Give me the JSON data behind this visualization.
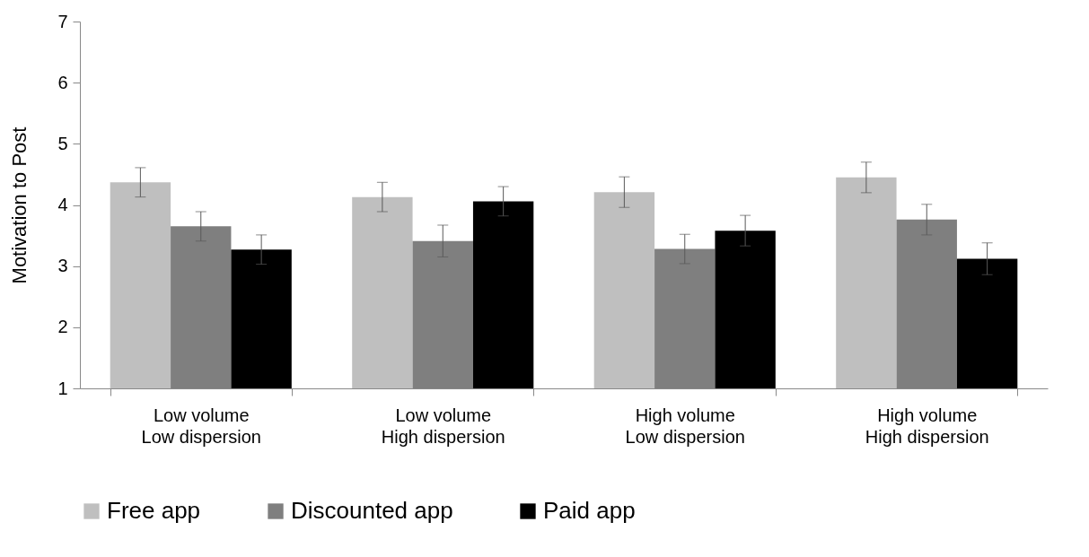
{
  "chart_data": {
    "type": "bar",
    "ylabel": "Motivation to Post",
    "categories": [
      "Low volume\nLow dispersion",
      "Low volume\nHigh dispersion",
      "High volume\nLow dispersion",
      "High volume\nHigh dispersion"
    ],
    "series": [
      {
        "name": "Free app",
        "color": "#bfbfbf",
        "values": [
          4.37,
          4.13,
          4.21,
          4.45
        ],
        "errors": [
          0.24,
          0.24,
          0.25,
          0.25
        ]
      },
      {
        "name": "Discounted app",
        "color": "#7f7f7f",
        "values": [
          3.65,
          3.41,
          3.28,
          3.76
        ],
        "errors": [
          0.24,
          0.26,
          0.24,
          0.25
        ]
      },
      {
        "name": "Paid app",
        "color": "#000000",
        "values": [
          3.27,
          4.06,
          3.58,
          3.12
        ],
        "errors": [
          0.24,
          0.24,
          0.25,
          0.26
        ]
      }
    ],
    "ylim": [
      1,
      7
    ],
    "yticks": [
      1,
      2,
      3,
      4,
      5,
      6,
      7
    ],
    "grid": false,
    "legend": "bottom"
  }
}
